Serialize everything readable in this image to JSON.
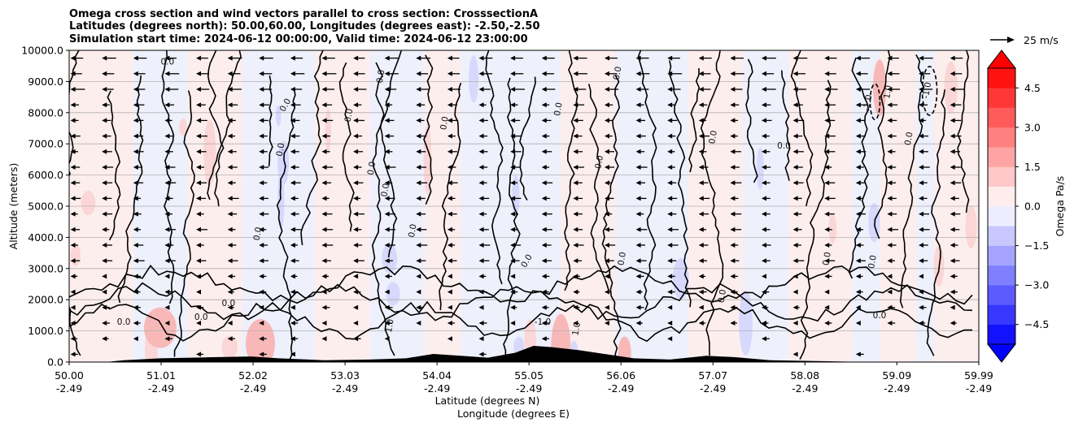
{
  "chart_data": {
    "type": "heatmap",
    "title_lines": [
      "Omega cross section and wind vectors parallel to cross section: CrosssectionA",
      "Latitudes (degrees north): 50.00,60.00, Longitudes (degrees east): -2.50,-2.50",
      "Simulation start time: 2024-06-12 00:00:00, Valid time: 2024-06-12 23:00:00"
    ],
    "xlabel_lines": [
      "Latitude (degrees N)",
      "Longitude (degrees E)"
    ],
    "ylabel": "Altitude (meters)",
    "xlim": [
      50.0,
      59.99
    ],
    "ylim": [
      0,
      10000
    ],
    "x_ticks": [
      {
        "lat": "50.00",
        "lon": "-2.49",
        "v": 50.0
      },
      {
        "lat": "51.01",
        "lon": "-2.49",
        "v": 51.01
      },
      {
        "lat": "52.02",
        "lon": "-2.49",
        "v": 52.02
      },
      {
        "lat": "53.03",
        "lon": "-2.49",
        "v": 53.03
      },
      {
        "lat": "54.04",
        "lon": "-2.49",
        "v": 54.04
      },
      {
        "lat": "55.05",
        "lon": "-2.49",
        "v": 55.05
      },
      {
        "lat": "56.06",
        "lon": "-2.49",
        "v": 56.06
      },
      {
        "lat": "57.07",
        "lon": "-2.49",
        "v": 57.07
      },
      {
        "lat": "58.08",
        "lon": "-2.49",
        "v": 58.08
      },
      {
        "lat": "59.09",
        "lon": "-2.49",
        "v": 59.09
      },
      {
        "lat": "59.99",
        "lon": "-2.49",
        "v": 59.99
      }
    ],
    "y_ticks": [
      {
        "label": "0.0",
        "v": 0
      },
      {
        "label": "1000.0",
        "v": 1000
      },
      {
        "label": "2000.0",
        "v": 2000
      },
      {
        "label": "3000.0",
        "v": 3000
      },
      {
        "label": "4000.0",
        "v": 4000
      },
      {
        "label": "5000.0",
        "v": 5000
      },
      {
        "label": "6000.0",
        "v": 6000
      },
      {
        "label": "7000.0",
        "v": 7000
      },
      {
        "label": "8000.0",
        "v": 8000
      },
      {
        "label": "9000.0",
        "v": 9000
      },
      {
        "label": "10000.0",
        "v": 10000
      }
    ],
    "grid": "horizontal",
    "colorbar": {
      "label": "Omega Pa/s",
      "range": [
        -5.25,
        5.25
      ],
      "step": 0.75,
      "ticks": [
        {
          "label": "4.5",
          "v": 4.5
        },
        {
          "label": "3.0",
          "v": 3.0
        },
        {
          "label": "1.5",
          "v": 1.5
        },
        {
          "label": "0.0",
          "v": 0.0
        },
        {
          "label": "−1.5",
          "v": -1.5
        },
        {
          "label": "−3.0",
          "v": -3.0
        },
        {
          "label": "−4.5",
          "v": -4.5
        }
      ],
      "extend": "both"
    },
    "quiver_key": {
      "label": "25 m/s",
      "speed": 25
    },
    "wind_direction": "southward (pointing left, toward lower latitude)",
    "contour_levels": [
      -1.0,
      0.0,
      1.0
    ],
    "contour_labels": [
      {
        "text": "0.0",
        "x": 51.08,
        "y": 9550,
        "r": 0
      },
      {
        "text": "0.0",
        "x": 52.4,
        "y": 8200,
        "r": -60
      },
      {
        "text": "0.0",
        "x": 53.1,
        "y": 7900,
        "r": -80
      },
      {
        "text": "0.0",
        "x": 53.45,
        "y": 9150,
        "r": -80
      },
      {
        "text": "0.0",
        "x": 54.15,
        "y": 7650,
        "r": -80
      },
      {
        "text": "0.0",
        "x": 55.4,
        "y": 8100,
        "r": -80
      },
      {
        "text": "0.0",
        "x": 56.05,
        "y": 9250,
        "r": -80
      },
      {
        "text": "0.0",
        "x": 57.1,
        "y": 7200,
        "r": -80
      },
      {
        "text": "0.0",
        "x": 57.85,
        "y": 6850,
        "r": 0
      },
      {
        "text": "0.0",
        "x": 59.25,
        "y": 7150,
        "r": -80
      },
      {
        "text": "1.0",
        "x": 59.02,
        "y": 8650,
        "r": -80
      },
      {
        "text": "-1.0",
        "x": 58.8,
        "y": 8300,
        "r": -80
      },
      {
        "text": "-1.0",
        "x": 59.45,
        "y": 8700,
        "r": -80
      },
      {
        "text": "0.0",
        "x": 52.35,
        "y": 6800,
        "r": -80
      },
      {
        "text": "0.0",
        "x": 53.35,
        "y": 6200,
        "r": -80
      },
      {
        "text": "0.0",
        "x": 55.85,
        "y": 6400,
        "r": -80
      },
      {
        "text": "0.0",
        "x": 53.5,
        "y": 5500,
        "r": -80
      },
      {
        "text": "0.0",
        "x": 52.1,
        "y": 4100,
        "r": -80
      },
      {
        "text": "0.0",
        "x": 53.8,
        "y": 4200,
        "r": -80
      },
      {
        "text": "0.0",
        "x": 55.05,
        "y": 3200,
        "r": -60
      },
      {
        "text": "0.0",
        "x": 56.1,
        "y": 3300,
        "r": -80
      },
      {
        "text": "0.0",
        "x": 58.35,
        "y": 3300,
        "r": -80
      },
      {
        "text": "0.0",
        "x": 57.2,
        "y": 2100,
        "r": -80
      },
      {
        "text": "0.0",
        "x": 58.85,
        "y": 3200,
        "r": -80
      },
      {
        "text": "0.0",
        "x": 51.75,
        "y": 1800,
        "r": 0
      },
      {
        "text": "0.0",
        "x": 51.45,
        "y": 1350,
        "r": 0
      },
      {
        "text": "0.0",
        "x": 50.6,
        "y": 1200,
        "r": 0
      },
      {
        "text": "1.0",
        "x": 53.55,
        "y": 1150,
        "r": -80
      },
      {
        "text": "1.0",
        "x": 55.6,
        "y": 1050,
        "r": -80
      },
      {
        "text": "-1.0",
        "x": 55.2,
        "y": 1200,
        "r": 0
      },
      {
        "text": "0.0",
        "x": 58.9,
        "y": 1400,
        "r": 0
      }
    ]
  }
}
